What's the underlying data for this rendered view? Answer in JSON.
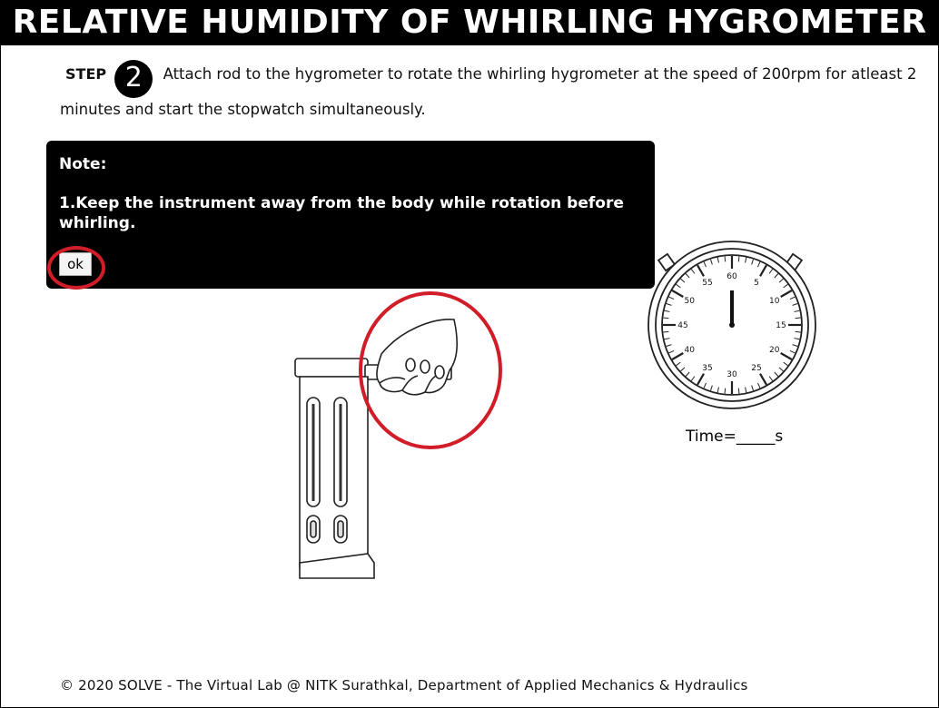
{
  "header": {
    "title": "RELATIVE HUMIDITY OF WHIRLING HYGROMETER"
  },
  "step": {
    "label": "STEP",
    "number": "2",
    "text": "Attach rod to the hygrometer to rotate the whirling hygrometer at the speed of 200rpm for atleast 2 minutes and start the stopwatch simultaneously."
  },
  "note": {
    "title": "Note:",
    "text": "1.Keep the instrument away from the body while rotation before whirling.",
    "ok_label": "ok"
  },
  "stopwatch": {
    "dial_labels": [
      "60",
      "5",
      "10",
      "15",
      "20",
      "25",
      "30",
      "35",
      "40",
      "45",
      "50",
      "55"
    ],
    "time_label": "Time=_____s"
  },
  "footer": {
    "text": "© 2020 SOLVE - The Virtual Lab @ NITK Surathkal, Department of Applied Mechanics & Hydraulics"
  },
  "colors": {
    "highlight_ring": "#d11d27",
    "note_bg": "#000000",
    "header_bg": "#000000"
  }
}
